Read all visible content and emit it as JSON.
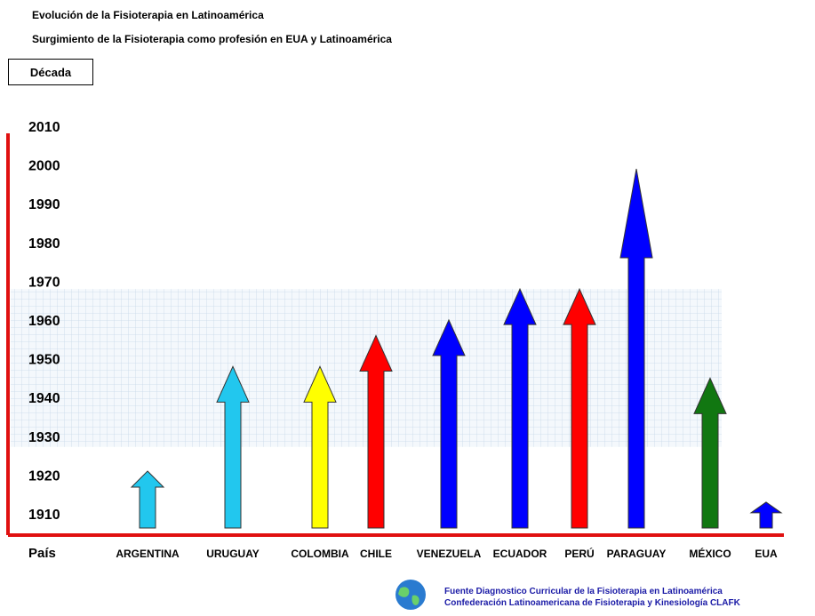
{
  "header": {
    "title": "Evolución de la Fisioterapia en Latinoamérica",
    "subtitle": "Surgimiento de la Fisioterapia como profesión en EUA y Latinoamérica",
    "decada_label": "Década"
  },
  "footer": {
    "line1": "Fuente Diagnostico Curricular de la Fisioterapia en Latinoamérica",
    "line2": "Confederación Latinoamericana de Fisioterapia y Kinesiología CLAFK"
  },
  "chart_data": {
    "type": "bar",
    "title": "Evolución de la Fisioterapia en Latinoamérica",
    "xlabel": "País",
    "ylabel": "Década",
    "yticks": [
      1910,
      1920,
      1930,
      1940,
      1950,
      1960,
      1970,
      1980,
      1990,
      2000,
      2010
    ],
    "ylim": [
      1905,
      2010
    ],
    "grid": "shaded band 1930–1968",
    "categories": [
      "ARGENTINA",
      "URUGUAY",
      "COLOMBIA",
      "CHILE",
      "VENEZUELA",
      "ECUADOR",
      "PERÚ",
      "PARAGUAY",
      "MÉXICO",
      "EUA"
    ],
    "values": [
      1921,
      1948,
      1948,
      1956,
      1960,
      1968,
      1968,
      1999,
      1945,
      1913
    ],
    "colors": [
      "#22c7ee",
      "#22c7ee",
      "#ffff00",
      "#ff0000",
      "#0000ff",
      "#0000ff",
      "#ff0000",
      "#0000ff",
      "#117711",
      "#0000ff"
    ]
  }
}
